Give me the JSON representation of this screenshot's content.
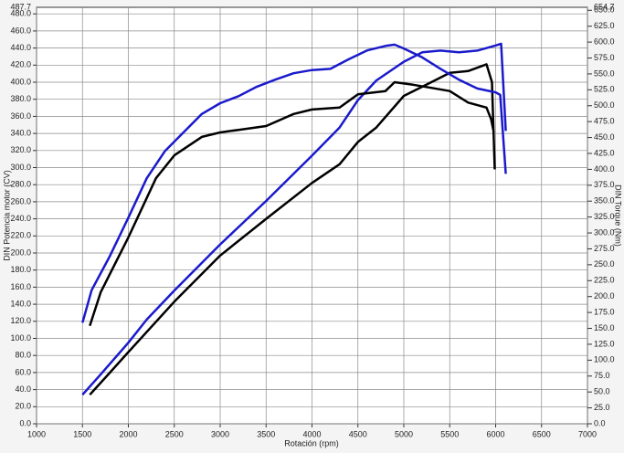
{
  "chart_data": {
    "type": "line",
    "xlabel": "Rotación (rpm)",
    "ylabel": "DIN Potencia motor (CV)",
    "y2label": "DIN Torque (Nm)",
    "xlim": [
      1000,
      7000
    ],
    "xticks": [
      1000,
      1500,
      2000,
      2500,
      3000,
      3500,
      4000,
      4500,
      5000,
      5500,
      6000,
      6500,
      7000
    ],
    "ylim": [
      0,
      487.7
    ],
    "yticks": [
      {
        "value": 0,
        "label": "0.0"
      },
      {
        "value": 20,
        "label": "20.0"
      },
      {
        "value": 40,
        "label": "40.0"
      },
      {
        "value": 60,
        "label": "60.0"
      },
      {
        "value": 80,
        "label": "80.0"
      },
      {
        "value": 100,
        "label": "100.0"
      },
      {
        "value": 120,
        "label": "120.0"
      },
      {
        "value": 140,
        "label": "140.0"
      },
      {
        "value": 160,
        "label": "160.0"
      },
      {
        "value": 180,
        "label": "180.0"
      },
      {
        "value": 200,
        "label": "200.0"
      },
      {
        "value": 220,
        "label": "220.0"
      },
      {
        "value": 240,
        "label": "240.0"
      },
      {
        "value": 260,
        "label": "260.0"
      },
      {
        "value": 280,
        "label": "280.0"
      },
      {
        "value": 300,
        "label": "300.0"
      },
      {
        "value": 320,
        "label": "320.0"
      },
      {
        "value": 340,
        "label": "340.0"
      },
      {
        "value": 360,
        "label": "360.0"
      },
      {
        "value": 380,
        "label": "380.0"
      },
      {
        "value": 400,
        "label": "400.0"
      },
      {
        "value": 420,
        "label": "420.0"
      },
      {
        "value": 440,
        "label": "440.0"
      },
      {
        "value": 460,
        "label": "460.0"
      },
      {
        "value": 480,
        "label": "480.0"
      }
    ],
    "y2lim": [
      0,
      654.7
    ],
    "y2ticks": [
      {
        "value": 0,
        "label": "0.0"
      },
      {
        "value": 25,
        "label": "25.0"
      },
      {
        "value": 50,
        "label": "50.0"
      },
      {
        "value": 75,
        "label": "75.0"
      },
      {
        "value": 100,
        "label": "100.0"
      },
      {
        "value": 125,
        "label": "125.0"
      },
      {
        "value": 150,
        "label": "150.0"
      },
      {
        "value": 175,
        "label": "175.0"
      },
      {
        "value": 200,
        "label": "200.0"
      },
      {
        "value": 225,
        "label": "225.0"
      },
      {
        "value": 250,
        "label": "250.0"
      },
      {
        "value": 275,
        "label": "275.0"
      },
      {
        "value": 300,
        "label": "300.0"
      },
      {
        "value": 325,
        "label": "325.0"
      },
      {
        "value": 350,
        "label": "350.0"
      },
      {
        "value": 375,
        "label": "375.0"
      },
      {
        "value": 400,
        "label": "400.0"
      },
      {
        "value": 425,
        "label": "425.0"
      },
      {
        "value": 450,
        "label": "450.0"
      },
      {
        "value": 475,
        "label": "475.0"
      },
      {
        "value": 500,
        "label": "500.0"
      },
      {
        "value": 525,
        "label": "525.0"
      },
      {
        "value": 550,
        "label": "550.0"
      },
      {
        "value": 575,
        "label": "575.0"
      },
      {
        "value": 600,
        "label": "600.0"
      },
      {
        "value": 625,
        "label": "625.0"
      },
      {
        "value": 650,
        "label": "650.0"
      }
    ],
    "grid": true,
    "series": [
      {
        "color": "#1a1acc",
        "axis": "y",
        "x": [
          1500,
          1700,
          2000,
          2200,
          2500,
          3000,
          3500,
          4000,
          4300,
          4500,
          4700,
          5000,
          5200,
          5400,
          5600,
          5800,
          6000,
          6060,
          6110
        ],
        "values": [
          34,
          58,
          95,
          122,
          156,
          210,
          261,
          314,
          347,
          379,
          402,
          424,
          435,
          437,
          435,
          437,
          443,
          445,
          343
        ]
      },
      {
        "color": "#000000",
        "axis": "y",
        "x": [
          1580,
          1800,
          2000,
          2500,
          3000,
          3500,
          4000,
          4300,
          4500,
          4700,
          5000,
          5300,
          5500,
          5700,
          5900,
          5960,
          5990
        ],
        "values": [
          34,
          60,
          84,
          143,
          197,
          240,
          282,
          304,
          330,
          347,
          384,
          400,
          411,
          413,
          421,
          400,
          298
        ]
      },
      {
        "color": "#1a1acc",
        "axis": "y2",
        "x": [
          1500,
          1600,
          1800,
          2000,
          2200,
          2400,
          2600,
          2800,
          3000,
          3200,
          3400,
          3600,
          3800,
          4000,
          4200,
          4400,
          4600,
          4800,
          4900,
          5000,
          5200,
          5400,
          5600,
          5800,
          6000,
          6050,
          6110
        ],
        "values": [
          159,
          210,
          264,
          324,
          386,
          429,
          458,
          487,
          504,
          515,
          530,
          541,
          551,
          556,
          558,
          573,
          587,
          594,
          596,
          590,
          576,
          558,
          541,
          527,
          521,
          517,
          393
        ]
      },
      {
        "color": "#000000",
        "axis": "y2",
        "x": [
          1580,
          1700,
          2000,
          2300,
          2500,
          2800,
          3000,
          3200,
          3500,
          3800,
          4000,
          4300,
          4500,
          4800,
          4900,
          5100,
          5300,
          5500,
          5700,
          5900,
          5950,
          5980
        ],
        "values": [
          154,
          207,
          293,
          386,
          422,
          451,
          458,
          462,
          468,
          487,
          494,
          497,
          518,
          523,
          537,
          533,
          528,
          523,
          505,
          497,
          479,
          458
        ]
      }
    ]
  }
}
